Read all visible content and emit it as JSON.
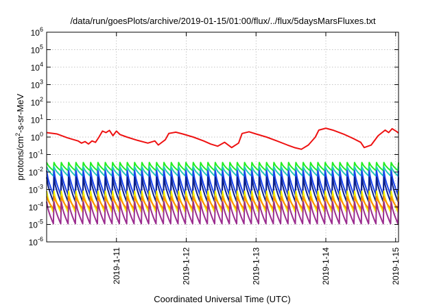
{
  "chart_data": {
    "type": "line",
    "title": "/data/run/goesPlots/archive/2019-01-15/01:00/flux/../flux/5daysMarsFluxes.txt",
    "xlabel": "Coordinated Universal Time (UTC)",
    "ylabel": {
      "prefix": "protons/cm",
      "sup": "2",
      "suffix": "-s-sr-MeV"
    },
    "x_range": [
      "2019-01-10T00:00",
      "2019-01-15T01:00"
    ],
    "x_ticks": [
      "2019-1-11",
      "2019-1-12",
      "2019-1-13",
      "2019-1-14",
      "2019-1-15"
    ],
    "y_scale": "log",
    "y_range": [
      1e-06,
      1000000.0
    ],
    "y_ticks": [
      {
        "base": "10",
        "exp": "-6"
      },
      {
        "base": "10",
        "exp": "-5"
      },
      {
        "base": "10",
        "exp": "-4"
      },
      {
        "base": "10",
        "exp": "-3"
      },
      {
        "base": "10",
        "exp": "-2"
      },
      {
        "base": "10",
        "exp": "-1"
      },
      {
        "base": "10",
        "exp": "0"
      },
      {
        "base": "10",
        "exp": "1"
      },
      {
        "base": "10",
        "exp": "2"
      },
      {
        "base": "10",
        "exp": "3"
      },
      {
        "base": "10",
        "exp": "4"
      },
      {
        "base": "10",
        "exp": "5"
      },
      {
        "base": "10",
        "exp": "6"
      }
    ],
    "grid": true,
    "sawtooth_cycles": 48,
    "series": [
      {
        "color": "#ee1111",
        "shape": "stepped",
        "points": [
          [
            0.0,
            1.8
          ],
          [
            0.15,
            1.5
          ],
          [
            0.3,
            0.9
          ],
          [
            0.45,
            0.6
          ],
          [
            0.5,
            0.45
          ],
          [
            0.55,
            0.55
          ],
          [
            0.6,
            0.4
          ],
          [
            0.65,
            0.6
          ],
          [
            0.7,
            0.5
          ],
          [
            0.75,
            1.0
          ],
          [
            0.8,
            2.2
          ],
          [
            0.85,
            1.8
          ],
          [
            0.9,
            2.4
          ],
          [
            0.95,
            1.2
          ],
          [
            1.0,
            2.2
          ],
          [
            1.05,
            1.4
          ],
          [
            1.15,
            1.0
          ],
          [
            1.3,
            0.65
          ],
          [
            1.45,
            0.45
          ],
          [
            1.55,
            0.6
          ],
          [
            1.6,
            0.35
          ],
          [
            1.7,
            0.7
          ],
          [
            1.75,
            1.6
          ],
          [
            1.85,
            1.9
          ],
          [
            1.95,
            1.5
          ],
          [
            2.1,
            1.0
          ],
          [
            2.25,
            0.6
          ],
          [
            2.35,
            0.4
          ],
          [
            2.45,
            0.3
          ],
          [
            2.55,
            0.5
          ],
          [
            2.65,
            0.25
          ],
          [
            2.75,
            0.45
          ],
          [
            2.8,
            1.6
          ],
          [
            2.9,
            2.0
          ],
          [
            3.0,
            1.5
          ],
          [
            3.15,
            1.0
          ],
          [
            3.3,
            0.6
          ],
          [
            3.45,
            0.35
          ],
          [
            3.55,
            0.25
          ],
          [
            3.65,
            0.2
          ],
          [
            3.75,
            0.35
          ],
          [
            3.85,
            1.0
          ],
          [
            3.9,
            2.5
          ],
          [
            4.0,
            3.2
          ],
          [
            4.1,
            2.5
          ],
          [
            4.25,
            1.5
          ],
          [
            4.4,
            0.8
          ],
          [
            4.5,
            0.5
          ],
          [
            4.55,
            0.25
          ],
          [
            4.65,
            0.35
          ],
          [
            4.75,
            1.2
          ],
          [
            4.85,
            2.5
          ],
          [
            4.9,
            1.8
          ],
          [
            4.95,
            3.0
          ],
          [
            5.02,
            2.0
          ],
          [
            5.04,
            1.7
          ]
        ]
      },
      {
        "color": "#22ee22",
        "shape": "sawtooth",
        "high": 0.035,
        "low": 0.012
      },
      {
        "color": "#22c8bb",
        "shape": "sawtooth",
        "high": 0.02,
        "low": 0.006
      },
      {
        "color": "#1a44ee",
        "shape": "sawtooth",
        "high": 0.012,
        "low": 0.0005
      },
      {
        "color": "#0b1f88",
        "shape": "sawtooth",
        "high": 0.005,
        "low": 0.0002
      },
      {
        "color": "#f2f200",
        "shape": "sawtooth",
        "high": 0.0008,
        "low": 5e-05
      },
      {
        "color": "#ff8c00",
        "shape": "sawtooth",
        "high": 0.0004,
        "low": 8e-05
      },
      {
        "color": "#9b2d8f",
        "shape": "sawtooth",
        "high": 0.0002,
        "low": 1.1e-05
      }
    ]
  }
}
